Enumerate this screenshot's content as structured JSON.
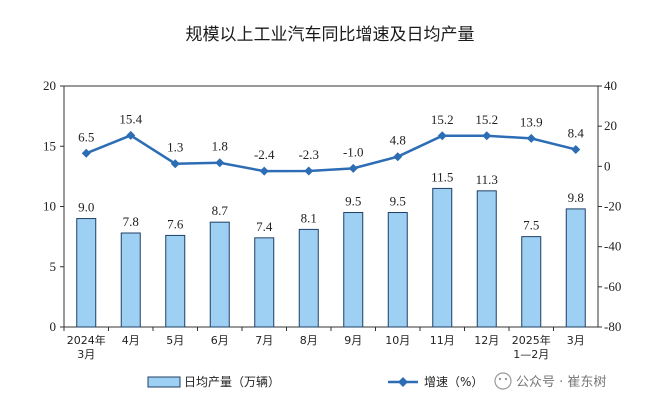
{
  "title": "规模以上工业汽车同比增速及日均产量",
  "watermark": "公众号 · 崔东树",
  "colors": {
    "bar_fill": "#9dd0f3",
    "bar_stroke": "#1f3f66",
    "line": "#2d6db5",
    "axis": "#333333"
  },
  "chart_data": {
    "type": "bar",
    "categories": [
      [
        "2024年",
        "3月"
      ],
      [
        "4月"
      ],
      [
        "5月"
      ],
      [
        "6月"
      ],
      [
        "7月"
      ],
      [
        "8月"
      ],
      [
        "9月"
      ],
      [
        "10月"
      ],
      [
        "11月"
      ],
      [
        "12月"
      ],
      [
        "2025年",
        "1—2月"
      ],
      [
        "3月"
      ]
    ],
    "series": [
      {
        "name": "日均产量（万辆）",
        "type": "bar",
        "axis": "left",
        "values": [
          9.0,
          7.8,
          7.6,
          8.7,
          7.4,
          8.1,
          9.5,
          9.5,
          11.5,
          11.3,
          7.5,
          9.8
        ],
        "labels": [
          "9.0",
          "7.8",
          "7.6",
          "8.7",
          "7.4",
          "8.1",
          "9.5",
          "9.5",
          "11.5",
          "11.3",
          "7.5",
          "9.8"
        ]
      },
      {
        "name": "增速（%）",
        "type": "line",
        "axis": "right",
        "values": [
          6.5,
          15.4,
          1.3,
          1.8,
          -2.4,
          -2.3,
          -1.0,
          4.8,
          15.2,
          15.2,
          13.9,
          8.4
        ],
        "labels": [
          "6.5",
          "15.4",
          "1.3",
          "1.8",
          "-2.4",
          "-2.3",
          "-1.0",
          "4.8",
          "15.2",
          "15.2",
          "13.9",
          "8.4"
        ]
      }
    ],
    "y_left": {
      "lim": [
        0,
        20
      ],
      "ticks": [
        "0",
        "5",
        "10",
        "15",
        "20"
      ]
    },
    "y_right": {
      "lim": [
        -80,
        40
      ],
      "ticks": [
        "-80",
        "-60",
        "-40",
        "-20",
        "0",
        "20",
        "40"
      ]
    },
    "legend": {
      "position": "bottom"
    },
    "grid": false
  }
}
